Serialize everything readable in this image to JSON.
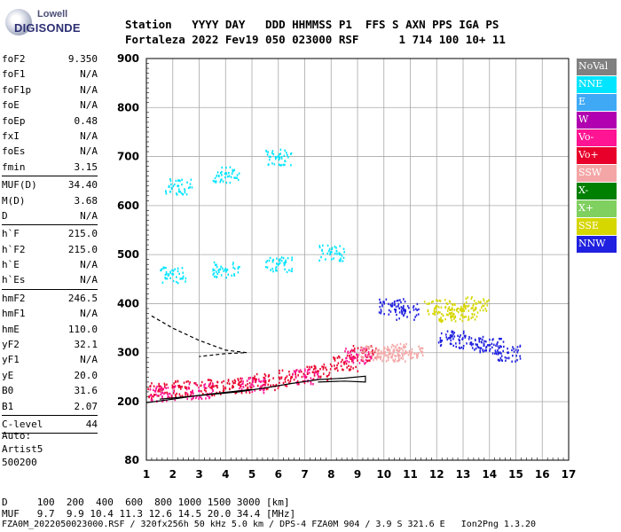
{
  "logo": {
    "line1": "Lowell",
    "line2": "DIGISONDE"
  },
  "header": {
    "row1": "Station   YYYY DAY   DDD HHMMSS P1  FFS S AXN PPS IGA PS",
    "row2": "Fortaleza 2022 Fev19 050 023000 RSF      1 714 100 10+ 11"
  },
  "params": [
    {
      "label": "foF2",
      "value": "9.350"
    },
    {
      "label": "foF1",
      "value": "N/A"
    },
    {
      "label": "foF1p",
      "value": "N/A"
    },
    {
      "label": "foE",
      "value": "N/A"
    },
    {
      "label": "foEp",
      "value": "0.48"
    },
    {
      "label": "fxI",
      "value": "N/A"
    },
    {
      "label": "foEs",
      "value": "N/A"
    },
    {
      "label": "fmin",
      "value": "3.15"
    },
    {
      "sep": true
    },
    {
      "label": "MUF(D)",
      "value": "34.40"
    },
    {
      "label": "M(D)",
      "value": "3.68"
    },
    {
      "label": "D",
      "value": "N/A"
    },
    {
      "sep": true
    },
    {
      "label": "h`F",
      "value": "215.0"
    },
    {
      "label": "h`F2",
      "value": "215.0"
    },
    {
      "label": "h`E",
      "value": "N/A"
    },
    {
      "label": "h`Es",
      "value": "N/A"
    },
    {
      "sep": true
    },
    {
      "label": "hmF2",
      "value": "246.5"
    },
    {
      "label": "hmF1",
      "value": "N/A"
    },
    {
      "label": "hmE",
      "value": "110.0"
    },
    {
      "label": "yF2",
      "value": "32.1"
    },
    {
      "label": "yF1",
      "value": "N/A"
    },
    {
      "label": "yE",
      "value": "20.0"
    },
    {
      "label": "B0",
      "value": "31.6"
    },
    {
      "label": "B1",
      "value": "2.07"
    },
    {
      "sep": true
    },
    {
      "label": "C-level",
      "value": "44"
    },
    {
      "sep": true
    }
  ],
  "auto": {
    "line1": "Auto:",
    "line2": "Artist5",
    "line3": "500200"
  },
  "legend": [
    {
      "label": "NoVal",
      "color": "#808080"
    },
    {
      "label": "NNE",
      "color": "#00e5ff"
    },
    {
      "label": "E",
      "color": "#3fa9f5"
    },
    {
      "label": "W",
      "color": "#b000b0"
    },
    {
      "label": "Vo-",
      "color": "#ff1493"
    },
    {
      "label": "Vo+",
      "color": "#e8002a"
    },
    {
      "label": "SSW",
      "color": "#f4a6a6"
    },
    {
      "label": "X-",
      "color": "#008000"
    },
    {
      "label": "X+",
      "color": "#80d060"
    },
    {
      "label": "SSE",
      "color": "#d6d600"
    },
    {
      "label": "NNW",
      "color": "#2020e0"
    }
  ],
  "bottom": {
    "line1": "D     100  200  400  600  800 1000 1500 3000 [km]",
    "line2": "MUF   9.7  9.9 10.4 11.3 12.6 14.5 20.0 34.4 [MHz]",
    "line3": "FZA0M_2022050023000.RSF / 320fx256h 50 kHz 5.0 km / DPS-4 FZA0M 904 / 3.9 S 321.6 E   Ion2Png 1.3.20"
  },
  "chart_data": {
    "type": "scatter",
    "xlim": [
      1,
      17
    ],
    "ylim": [
      80,
      900
    ],
    "x_ticks": [
      1,
      2,
      3,
      4,
      5,
      6,
      7,
      8,
      9,
      10,
      11,
      12,
      13,
      14,
      15,
      16,
      17
    ],
    "y_ticks": [
      80,
      200,
      300,
      400,
      500,
      600,
      700,
      800,
      900
    ],
    "grid": true,
    "series": [
      {
        "direction": "Vo+",
        "color": "#e8002a",
        "points": [
          [
            1.5,
            225
          ],
          [
            2.5,
            228
          ],
          [
            3.5,
            231
          ],
          [
            4.5,
            235
          ],
          [
            5.5,
            242
          ],
          [
            6.5,
            250
          ],
          [
            7.5,
            262
          ],
          [
            8.5,
            280
          ],
          [
            9.2,
            300
          ]
        ]
      },
      {
        "direction": "Vo-",
        "color": "#ff1493",
        "points": [
          [
            1.6,
            218
          ],
          [
            3.0,
            222
          ],
          [
            5.0,
            235
          ],
          [
            7.0,
            252
          ],
          [
            9.0,
            295
          ]
        ]
      },
      {
        "direction": "NNW",
        "color": "#2020e0",
        "points": [
          [
            10.3,
            395
          ],
          [
            10.8,
            385
          ],
          [
            12.5,
            330
          ],
          [
            13.3,
            320
          ],
          [
            14.0,
            315
          ],
          [
            14.7,
            300
          ]
        ]
      },
      {
        "direction": "NNE",
        "color": "#00e5ff",
        "points": [
          [
            2.0,
            460
          ],
          [
            4.0,
            470
          ],
          [
            6.0,
            480
          ],
          [
            8.0,
            505
          ],
          [
            2.2,
            640
          ],
          [
            4.0,
            665
          ],
          [
            6.0,
            700
          ]
        ]
      },
      {
        "direction": "SSE",
        "color": "#d6d600",
        "points": [
          [
            12.0,
            395
          ],
          [
            12.5,
            380
          ],
          [
            13.0,
            385
          ],
          [
            13.5,
            400
          ]
        ]
      },
      {
        "direction": "SSW",
        "color": "#f4a6a6",
        "points": [
          [
            9.5,
            300
          ],
          [
            10.0,
            300
          ],
          [
            10.5,
            305
          ],
          [
            11.0,
            300
          ]
        ]
      }
    ],
    "curves": [
      {
        "name": "trace",
        "points": [
          [
            1.5,
            205
          ],
          [
            2.5,
            210
          ],
          [
            3.5,
            215
          ],
          [
            4.5,
            220
          ],
          [
            5.5,
            228
          ],
          [
            6.5,
            237
          ],
          [
            7.5,
            245
          ],
          [
            8.5,
            248
          ],
          [
            9.3,
            252
          ],
          [
            9.3,
            240
          ],
          [
            8.5,
            242
          ],
          [
            7.5,
            240
          ]
        ]
      },
      {
        "name": "profile",
        "points": [
          [
            1.0,
            198
          ],
          [
            2.0,
            205
          ],
          [
            3.0,
            213
          ],
          [
            4.0,
            219
          ],
          [
            5.0,
            225
          ]
        ]
      },
      {
        "name": "dashed",
        "dash": true,
        "points": [
          [
            1.2,
            375
          ],
          [
            2.0,
            350
          ],
          [
            3.0,
            325
          ],
          [
            4.0,
            305
          ],
          [
            4.8,
            300
          ],
          [
            4.0,
            298
          ],
          [
            3.0,
            292
          ]
        ]
      }
    ]
  }
}
